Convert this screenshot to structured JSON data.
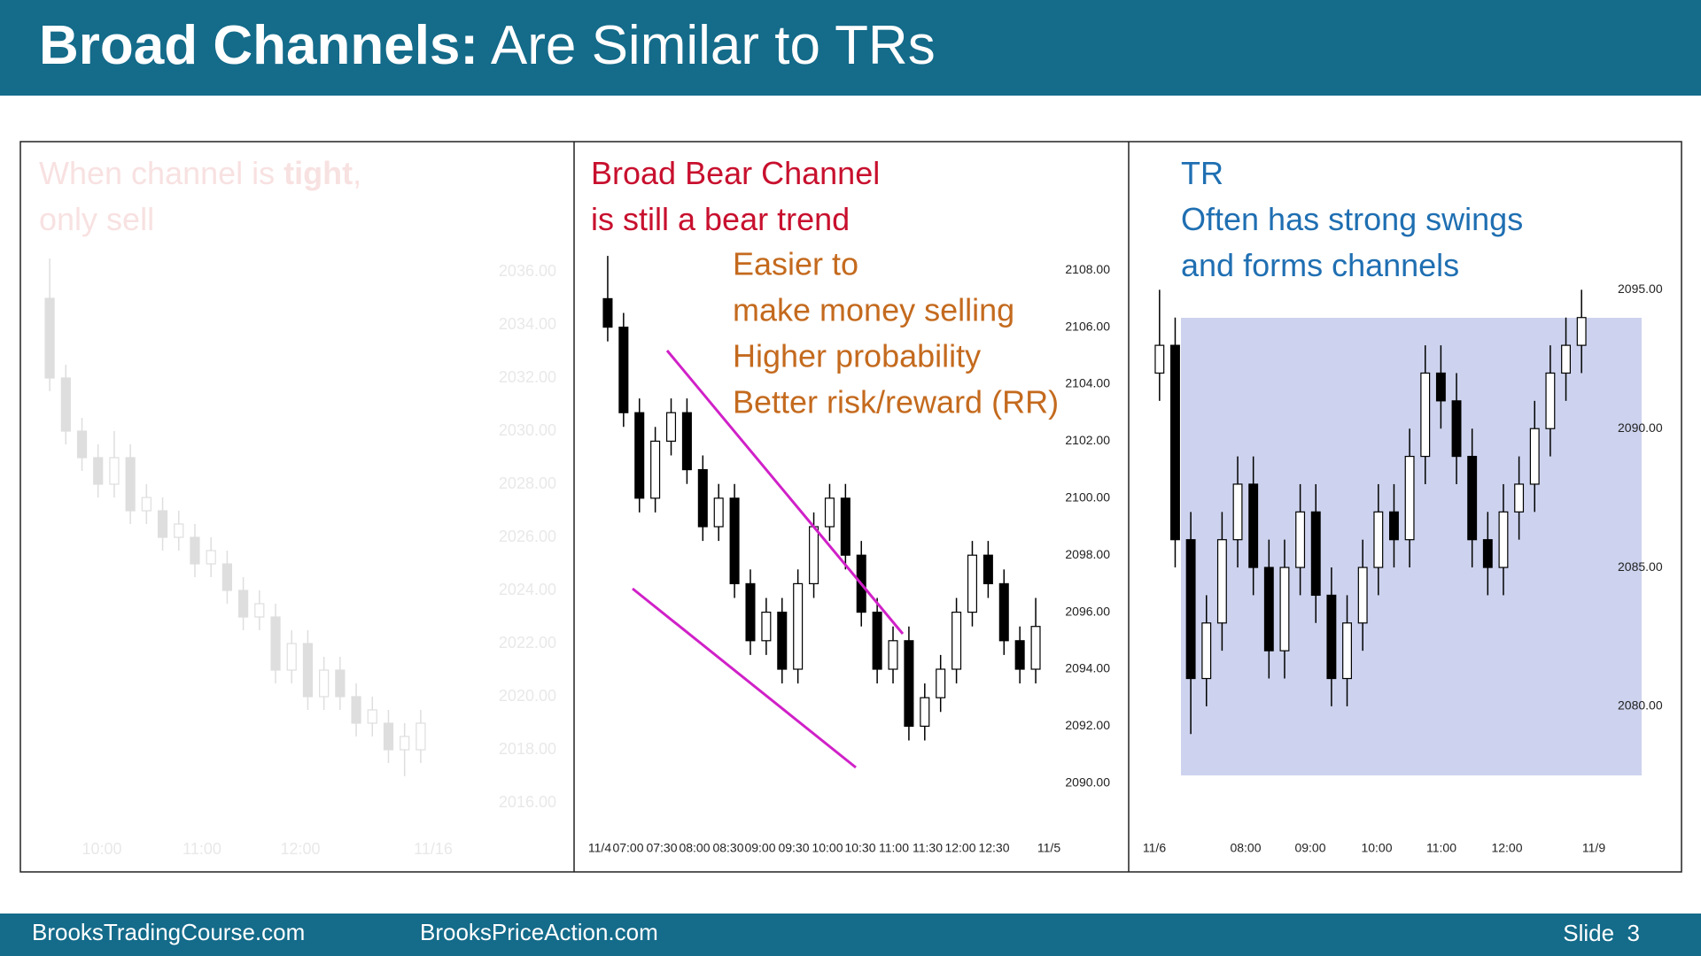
{
  "header": {
    "title_bold": "Broad Channels:",
    "title_rest": " Are Similar to TRs"
  },
  "footer": {
    "left": "BrooksTradingCourse.com",
    "middle": "BrooksPriceAction.com",
    "slide": "Slide  3"
  },
  "chart_data": [
    {
      "type": "candlestick",
      "faded": true,
      "color": "#c4c4c4",
      "title_color": "#f3c9c9",
      "title_lines": [
        [
          "When channel is ",
          {
            "text": "tight",
            "bold": true
          },
          ","
        ],
        [
          "only sell"
        ]
      ],
      "categories": [
        "10:00",
        "11:00",
        "12:00",
        "11/16"
      ],
      "ylim": [
        2015,
        2037
      ],
      "yticks": [
        {
          "value": 2016,
          "label": "2016.00"
        },
        {
          "value": 2018,
          "label": "2018.00"
        },
        {
          "value": 2020,
          "label": "2020.00"
        },
        {
          "value": 2022,
          "label": "2022.00"
        },
        {
          "value": 2024,
          "label": "2024.00"
        },
        {
          "value": 2026,
          "label": "2026.00"
        },
        {
          "value": 2028,
          "label": "2028.00"
        },
        {
          "value": 2030,
          "label": "2030.00"
        },
        {
          "value": 2032,
          "label": "2032.00"
        },
        {
          "value": 2034,
          "label": "2034.00"
        },
        {
          "value": 2036,
          "label": "2036.00"
        }
      ],
      "open": [
        2035,
        2032,
        2030,
        2029,
        2028,
        2029,
        2027,
        2027,
        2026,
        2026,
        2025,
        2025,
        2024,
        2023,
        2023,
        2021,
        2022,
        2020,
        2021,
        2020,
        2019,
        2019,
        2018,
        2018
      ],
      "high": [
        2036.5,
        2032.5,
        2030.5,
        2029.5,
        2030,
        2029.5,
        2028,
        2027.5,
        2027,
        2026.5,
        2026,
        2025.5,
        2024.5,
        2024,
        2023.5,
        2022.5,
        2022.5,
        2021.5,
        2021.5,
        2020.5,
        2020,
        2019.5,
        2019,
        2019.5
      ],
      "low": [
        2031.5,
        2029.5,
        2028.5,
        2027.5,
        2027.5,
        2026.5,
        2026.5,
        2025.5,
        2025.5,
        2024.5,
        2024.5,
        2023.5,
        2022.5,
        2022.5,
        2020.5,
        2020.5,
        2019.5,
        2019.5,
        2019.5,
        2018.5,
        2018.5,
        2017.5,
        2017,
        2017.5
      ],
      "close": [
        2032,
        2030,
        2029,
        2028,
        2029,
        2027,
        2027.5,
        2026,
        2026.5,
        2025,
        2025.5,
        2024,
        2023,
        2023.5,
        2021,
        2022,
        2020,
        2021,
        2020,
        2019,
        2019.5,
        2018,
        2018.5,
        2019
      ]
    },
    {
      "type": "candlestick",
      "color": "#000000",
      "title_color": "#c8102e",
      "title_lines": [
        [
          "Broad Bear Channel"
        ],
        [
          "is still a bear trend"
        ]
      ],
      "annotation_color": "#c46a1e",
      "annotation_lines": [
        "Easier to",
        "make money selling",
        "Higher probability",
        "Better risk/reward (RR)"
      ],
      "categories": [
        "11/4",
        "07:00",
        "07:30",
        "08:00",
        "08:30",
        "09:00",
        "09:30",
        "10:00",
        "10:30",
        "11:00",
        "11:30",
        "12:00",
        "12:30",
        "11/5"
      ],
      "ylim": [
        2089,
        2109
      ],
      "yticks": [
        {
          "value": 2090,
          "label": "2090.00"
        },
        {
          "value": 2092,
          "label": "2092.00"
        },
        {
          "value": 2094,
          "label": "2094.00"
        },
        {
          "value": 2096,
          "label": "2096.00"
        },
        {
          "value": 2098,
          "label": "2098.00"
        },
        {
          "value": 2100,
          "label": "2100.00"
        },
        {
          "value": 2102,
          "label": "2102.00"
        },
        {
          "value": 2104,
          "label": "2104.00"
        },
        {
          "value": 2106,
          "label": "2106.00"
        },
        {
          "value": 2108,
          "label": "2108.00"
        }
      ],
      "open": [
        2107,
        2106,
        2103,
        2100,
        2102,
        2103,
        2101,
        2099,
        2100,
        2097,
        2095,
        2096,
        2094,
        2097,
        2099,
        2100,
        2098,
        2096,
        2094,
        2095,
        2092,
        2093,
        2094,
        2096,
        2098,
        2097,
        2095,
        2094
      ],
      "high": [
        2108.5,
        2106.5,
        2103.5,
        2102.5,
        2103.5,
        2103.5,
        2101.5,
        2100.5,
        2100.5,
        2097.5,
        2096.5,
        2096.5,
        2097.5,
        2099.5,
        2100.5,
        2100.5,
        2098.5,
        2096.5,
        2095.5,
        2095.5,
        2093.5,
        2094.5,
        2096.5,
        2098.5,
        2098.5,
        2097.5,
        2095.5,
        2096.5
      ],
      "low": [
        2105.5,
        2102.5,
        2099.5,
        2099.5,
        2101.5,
        2100.5,
        2098.5,
        2098.5,
        2096.5,
        2094.5,
        2094.5,
        2093.5,
        2093.5,
        2096.5,
        2098.5,
        2097.5,
        2095.5,
        2093.5,
        2093.5,
        2091.5,
        2091.5,
        2092.5,
        2093.5,
        2095.5,
        2096.5,
        2094.5,
        2093.5,
        2093.5
      ],
      "close": [
        2106,
        2103,
        2100,
        2102,
        2103,
        2101,
        2099,
        2100,
        2097,
        2095,
        2096,
        2094,
        2097,
        2099,
        2100,
        2098,
        2096,
        2094,
        2095,
        2092,
        2093,
        2094,
        2096,
        2098,
        2097,
        2095,
        2094,
        2095.5
      ]
    },
    {
      "type": "candlestick",
      "color": "#000000",
      "title_color": "#1f6fb2",
      "shade_color": "#cdd3ee",
      "title_lines": [
        [
          "TR"
        ],
        [
          "Often has strong swings"
        ],
        [
          "and forms channels"
        ]
      ],
      "categories": [
        "11/6",
        "08:00",
        "09:00",
        "10:00",
        "11:00",
        "12:00",
        "11/9"
      ],
      "ylim": [
        2077,
        2096
      ],
      "yticks": [
        {
          "value": 2080,
          "label": "2080.00"
        },
        {
          "value": 2085,
          "label": "2085.00"
        },
        {
          "value": 2090,
          "label": "2090.00"
        },
        {
          "value": 2095,
          "label": "2095.00"
        }
      ],
      "open": [
        2092,
        2093,
        2086,
        2081,
        2083,
        2086,
        2088,
        2085,
        2082,
        2085,
        2087,
        2084,
        2081,
        2083,
        2085,
        2087,
        2086,
        2089,
        2092,
        2091,
        2089,
        2086,
        2085,
        2087,
        2088,
        2090,
        2092,
        2093
      ],
      "high": [
        2095,
        2094,
        2087,
        2084,
        2087,
        2089,
        2089,
        2086,
        2086,
        2088,
        2088,
        2085,
        2084,
        2086,
        2088,
        2088,
        2090,
        2093,
        2093,
        2092,
        2090,
        2087,
        2088,
        2089,
        2091,
        2093,
        2094,
        2095
      ],
      "low": [
        2091,
        2085,
        2079,
        2080,
        2082,
        2085,
        2084,
        2081,
        2081,
        2084,
        2083,
        2080,
        2080,
        2082,
        2084,
        2085,
        2085,
        2088,
        2090,
        2088,
        2085,
        2084,
        2084,
        2086,
        2087,
        2089,
        2091,
        2092
      ],
      "close": [
        2093,
        2086,
        2081,
        2083,
        2086,
        2088,
        2085,
        2082,
        2085,
        2087,
        2084,
        2081,
        2083,
        2085,
        2087,
        2086,
        2089,
        2092,
        2091,
        2089,
        2086,
        2085,
        2087,
        2088,
        2090,
        2092,
        2093,
        2094
      ]
    }
  ]
}
